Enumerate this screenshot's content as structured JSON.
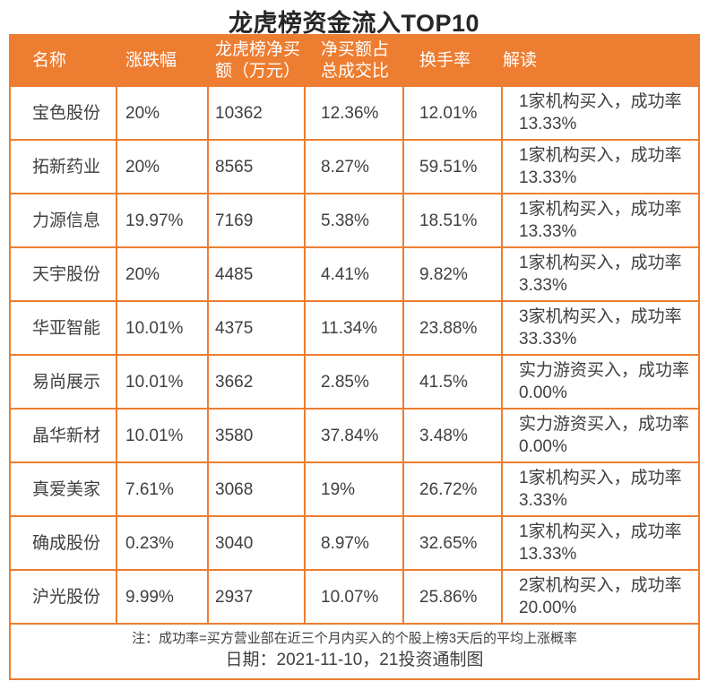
{
  "colors": {
    "accent_orange": "#ED7D31",
    "header_text": "#FFFFFF",
    "body_text": "#404040"
  },
  "chart_data": {
    "type": "table",
    "title": "龙虎榜资金流入TOP10",
    "columns": [
      "名称",
      "涨跌幅",
      "龙虎榜净买额（万元）",
      "净买额占总成交比",
      "换手率",
      "解读"
    ],
    "rows": [
      [
        "宝色股份",
        "20%",
        "10362",
        "12.36%",
        "12.01%",
        "1家机构买入，成功率13.33%"
      ],
      [
        "拓新药业",
        "20%",
        "8565",
        "8.27%",
        "59.51%",
        "1家机构买入，成功率13.33%"
      ],
      [
        "力源信息",
        "19.97%",
        "7169",
        "5.38%",
        "18.51%",
        "1家机构买入，成功率13.33%"
      ],
      [
        "天宇股份",
        "20%",
        "4485",
        "4.41%",
        "9.82%",
        "1家机构买入，成功率3.33%"
      ],
      [
        "华亚智能",
        "10.01%",
        "4375",
        "11.34%",
        "23.88%",
        "3家机构买入，成功率33.33%"
      ],
      [
        "易尚展示",
        "10.01%",
        "3662",
        "2.85%",
        "41.5%",
        "实力游资买入，成功率0.00%"
      ],
      [
        "晶华新材",
        "10.01%",
        "3580",
        "37.84%",
        "3.48%",
        "实力游资买入，成功率0.00%"
      ],
      [
        "真爱美家",
        "7.61%",
        "3068",
        "19%",
        "26.72%",
        "1家机构买入，成功率3.33%"
      ],
      [
        "确成股份",
        "0.23%",
        "3040",
        "8.97%",
        "32.65%",
        "1家机构买入，成功率13.33%"
      ],
      [
        "沪光股份",
        "9.99%",
        "2937",
        "10.07%",
        "25.86%",
        "2家机构买入，成功率20.00%"
      ]
    ],
    "note": "注：成功率=买方营业部在近三个月内买入的个股上榜3天后的平均上涨概率",
    "date_line": "日期：2021-11-10，21投资通制图"
  }
}
